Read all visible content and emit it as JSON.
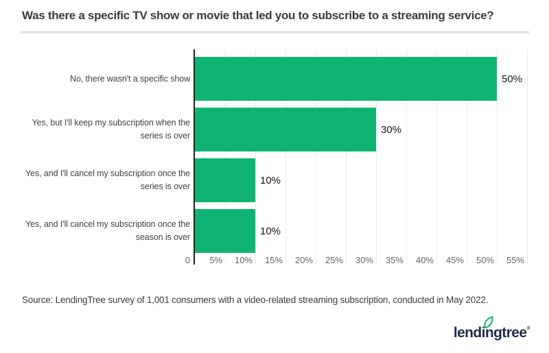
{
  "title": "Was there a specific TV show or movie that led you to subscribe to a streaming service?",
  "chart_data": {
    "type": "bar",
    "orientation": "horizontal",
    "categories": [
      "No, there wasn't a specific show",
      "Yes, but I'll keep my subscription when the series is over",
      "Yes, and I'll cancel my subscription once the series is over",
      "Yes, and I'll cancel my subscription once the season is over"
    ],
    "values": [
      50,
      30,
      10,
      10
    ],
    "value_labels": [
      "50%",
      "30%",
      "10%",
      "10%"
    ],
    "x_ticks": [
      "0",
      "5%",
      "10%",
      "15%",
      "20%",
      "25%",
      "30%",
      "35%",
      "40%",
      "45%",
      "50%",
      "55%"
    ],
    "x_tick_values": [
      0,
      5,
      10,
      15,
      20,
      25,
      30,
      35,
      40,
      45,
      50,
      55
    ],
    "xlim": [
      0,
      55
    ],
    "grid": "vertical",
    "legend": "none",
    "title": "Was there a specific TV show or movie that led you to subscribe to a streaming service?"
  },
  "colors": {
    "bar_green": "#10b472",
    "axis_dark": "#1d1d1d",
    "gridline": "#e9e9e9",
    "title_text": "#3a3a3a",
    "tick_text": "#636363",
    "logo_navy": "#1e2b47",
    "leaf_green": "#21b573"
  },
  "source": "Source: LendingTree survey of 1,001 consumers with a video-related streaming subscription, conducted in May 2022.",
  "logo": {
    "text": "lendingtree",
    "trademark": "®"
  }
}
